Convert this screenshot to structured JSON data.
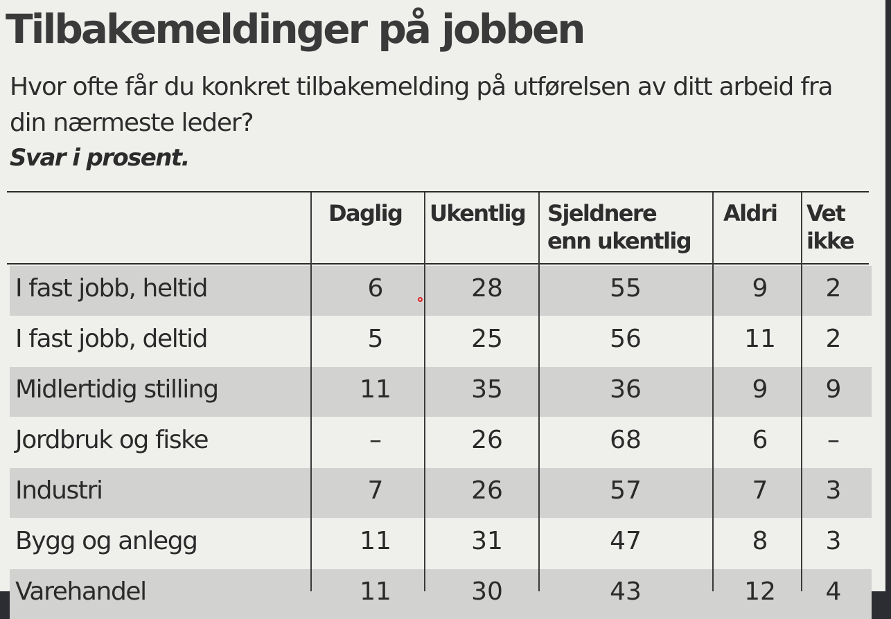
{
  "title": "Tilbakemeldinger på jobben",
  "subtitle": "Hvor ofte får du konkret tilbakemelding på utførelsen av ditt arbeid fra din nærmeste leder?",
  "note": "Svar i prosent.",
  "table": {
    "headers": [
      [
        "Daglig"
      ],
      [
        "Ukentlig"
      ],
      [
        "Sjeldnere",
        "enn ukentlig"
      ],
      [
        "Aldri"
      ],
      [
        "Vet",
        "ikke"
      ]
    ],
    "rows": [
      {
        "label": "I fast jobb, heltid",
        "values": [
          "6",
          "28",
          "55",
          "9",
          "2"
        ]
      },
      {
        "label": "I fast jobb, deltid",
        "values": [
          "5",
          "25",
          "56",
          "11",
          "2"
        ]
      },
      {
        "label": "Midlertidig stilling",
        "values": [
          "11",
          "35",
          "36",
          "9",
          "9"
        ]
      },
      {
        "label": "Jordbruk og fiske",
        "values": [
          "–",
          "26",
          "68",
          "6",
          "–"
        ]
      },
      {
        "label": "Industri",
        "values": [
          "7",
          "26",
          "57",
          "7",
          "3"
        ]
      },
      {
        "label": "Bygg og anlegg",
        "values": [
          "11",
          "31",
          "47",
          "8",
          "3"
        ]
      },
      {
        "label": "Varehandel",
        "values": [
          "11",
          "30",
          "43",
          "12",
          "4"
        ]
      }
    ]
  }
}
